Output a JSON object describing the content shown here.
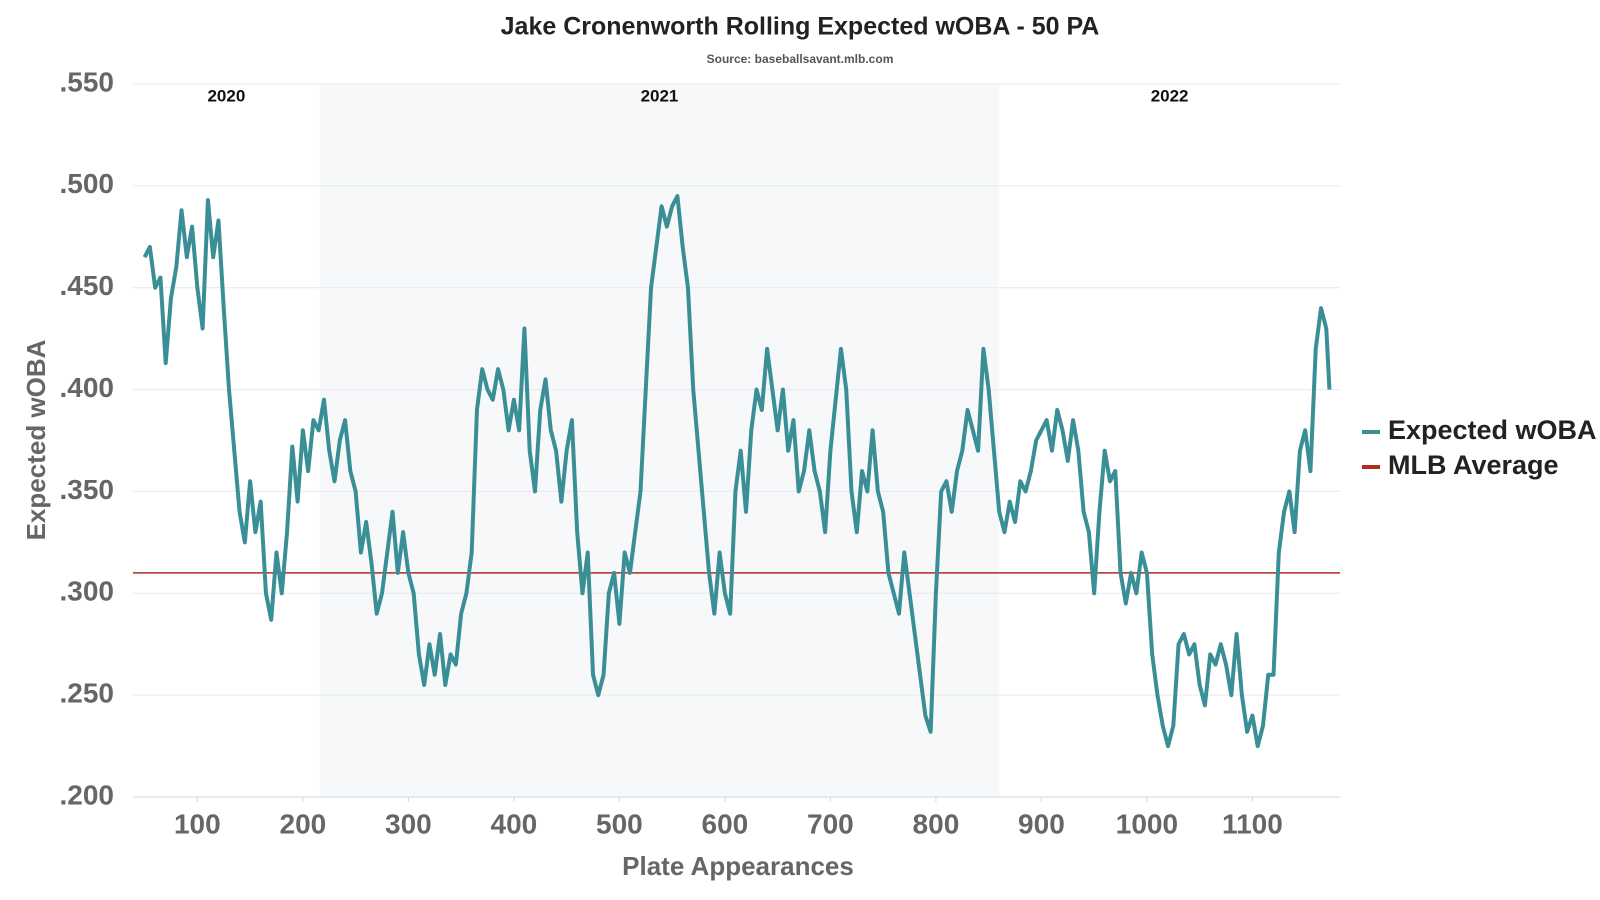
{
  "chart_data": {
    "type": "line",
    "title": "Jake Cronenworth Rolling Expected wOBA - 50 PA",
    "subtitle": "Source: baseballsavant.mlb.com",
    "x_label": "Plate Appearances",
    "y_label": "Expected wOBA",
    "xlim": [
      39,
      1183
    ],
    "ylim": [
      0.2,
      0.55
    ],
    "xticks": [
      100,
      200,
      300,
      400,
      500,
      600,
      700,
      800,
      900,
      1000,
      1100
    ],
    "yticks": [
      {
        "value": 0.2,
        "label": ".200"
      },
      {
        "value": 0.25,
        "label": ".250"
      },
      {
        "value": 0.3,
        "label": ".300"
      },
      {
        "value": 0.35,
        "label": ".350"
      },
      {
        "value": 0.4,
        "label": ".400"
      },
      {
        "value": 0.45,
        "label": ".450"
      },
      {
        "value": 0.5,
        "label": ".500"
      },
      {
        "value": 0.55,
        "label": ".550"
      }
    ],
    "grid": true,
    "legend": "right",
    "seasons": [
      {
        "label": "2020",
        "start": 39,
        "end": 216,
        "shaded": false
      },
      {
        "label": "2021",
        "start": 216,
        "end": 860,
        "shaded": true
      },
      {
        "label": "2022",
        "start": 860,
        "end": 1183,
        "shaded": false
      }
    ],
    "reference_lines": [
      {
        "name": "MLB Average",
        "value": 0.31,
        "color": "#b22a22"
      }
    ],
    "x": [
      50,
      55,
      60,
      65,
      70,
      75,
      80,
      85,
      90,
      95,
      100,
      105,
      110,
      115,
      120,
      125,
      130,
      135,
      140,
      145,
      150,
      155,
      160,
      165,
      170,
      175,
      180,
      185,
      190,
      195,
      200,
      205,
      210,
      215,
      220,
      225,
      230,
      235,
      240,
      245,
      250,
      255,
      260,
      265,
      270,
      275,
      280,
      285,
      290,
      295,
      300,
      305,
      310,
      315,
      320,
      325,
      330,
      335,
      340,
      345,
      350,
      355,
      360,
      365,
      370,
      375,
      380,
      385,
      390,
      395,
      400,
      405,
      410,
      415,
      420,
      425,
      430,
      435,
      440,
      445,
      450,
      455,
      460,
      465,
      470,
      475,
      480,
      485,
      490,
      495,
      500,
      505,
      510,
      515,
      520,
      525,
      530,
      535,
      540,
      545,
      550,
      555,
      560,
      565,
      570,
      575,
      580,
      585,
      590,
      595,
      600,
      605,
      610,
      615,
      620,
      625,
      630,
      635,
      640,
      645,
      650,
      655,
      660,
      665,
      670,
      675,
      680,
      685,
      690,
      695,
      700,
      705,
      710,
      715,
      720,
      725,
      730,
      735,
      740,
      745,
      750,
      755,
      760,
      765,
      770,
      775,
      780,
      785,
      790,
      795,
      800,
      805,
      810,
      815,
      820,
      825,
      830,
      835,
      840,
      845,
      850,
      855,
      860,
      865,
      870,
      875,
      880,
      885,
      890,
      895,
      900,
      905,
      910,
      915,
      920,
      925,
      930,
      935,
      940,
      945,
      950,
      955,
      960,
      965,
      970,
      975,
      980,
      985,
      990,
      995,
      1000,
      1005,
      1010,
      1015,
      1020,
      1025,
      1030,
      1035,
      1040,
      1045,
      1050,
      1055,
      1060,
      1065,
      1070,
      1075,
      1080,
      1085,
      1090,
      1095,
      1100,
      1105,
      1110,
      1115,
      1120,
      1125,
      1130,
      1135,
      1140,
      1145,
      1150,
      1155,
      1160,
      1165,
      1170,
      1173
    ],
    "series": [
      {
        "name": "Expected wOBA",
        "color": "#3a8f97",
        "values": [
          0.465,
          0.47,
          0.45,
          0.455,
          0.413,
          0.445,
          0.46,
          0.488,
          0.465,
          0.48,
          0.45,
          0.43,
          0.493,
          0.465,
          0.483,
          0.44,
          0.4,
          0.37,
          0.34,
          0.325,
          0.355,
          0.33,
          0.345,
          0.3,
          0.287,
          0.32,
          0.3,
          0.33,
          0.372,
          0.345,
          0.38,
          0.36,
          0.385,
          0.38,
          0.395,
          0.37,
          0.355,
          0.375,
          0.385,
          0.36,
          0.35,
          0.32,
          0.335,
          0.315,
          0.29,
          0.3,
          0.32,
          0.34,
          0.31,
          0.33,
          0.31,
          0.3,
          0.27,
          0.255,
          0.275,
          0.26,
          0.28,
          0.255,
          0.27,
          0.265,
          0.29,
          0.3,
          0.32,
          0.39,
          0.41,
          0.4,
          0.395,
          0.41,
          0.4,
          0.38,
          0.395,
          0.38,
          0.43,
          0.37,
          0.35,
          0.39,
          0.405,
          0.38,
          0.37,
          0.345,
          0.37,
          0.385,
          0.33,
          0.3,
          0.32,
          0.26,
          0.25,
          0.26,
          0.3,
          0.31,
          0.285,
          0.32,
          0.31,
          0.33,
          0.35,
          0.4,
          0.45,
          0.47,
          0.49,
          0.48,
          0.49,
          0.495,
          0.47,
          0.45,
          0.4,
          0.37,
          0.34,
          0.31,
          0.29,
          0.32,
          0.3,
          0.29,
          0.35,
          0.37,
          0.34,
          0.38,
          0.4,
          0.39,
          0.42,
          0.4,
          0.38,
          0.4,
          0.37,
          0.385,
          0.35,
          0.36,
          0.38,
          0.36,
          0.35,
          0.33,
          0.37,
          0.395,
          0.42,
          0.4,
          0.35,
          0.33,
          0.36,
          0.35,
          0.38,
          0.35,
          0.34,
          0.31,
          0.3,
          0.29,
          0.32,
          0.3,
          0.28,
          0.26,
          0.24,
          0.232,
          0.3,
          0.35,
          0.355,
          0.34,
          0.36,
          0.37,
          0.39,
          0.38,
          0.37,
          0.42,
          0.4,
          0.37,
          0.34,
          0.33,
          0.345,
          0.335,
          0.355,
          0.35,
          0.36,
          0.375,
          0.38,
          0.385,
          0.37,
          0.39,
          0.38,
          0.365,
          0.385,
          0.37,
          0.34,
          0.33,
          0.3,
          0.34,
          0.37,
          0.355,
          0.36,
          0.31,
          0.295,
          0.31,
          0.3,
          0.32,
          0.31,
          0.27,
          0.25,
          0.235,
          0.225,
          0.235,
          0.275,
          0.28,
          0.27,
          0.275,
          0.255,
          0.245,
          0.27,
          0.265,
          0.275,
          0.265,
          0.25,
          0.28,
          0.25,
          0.232,
          0.24,
          0.225,
          0.235,
          0.26,
          0.26,
          0.32,
          0.34,
          0.35,
          0.33,
          0.37,
          0.38,
          0.36,
          0.42,
          0.44,
          0.43,
          0.4
        ]
      }
    ]
  }
}
